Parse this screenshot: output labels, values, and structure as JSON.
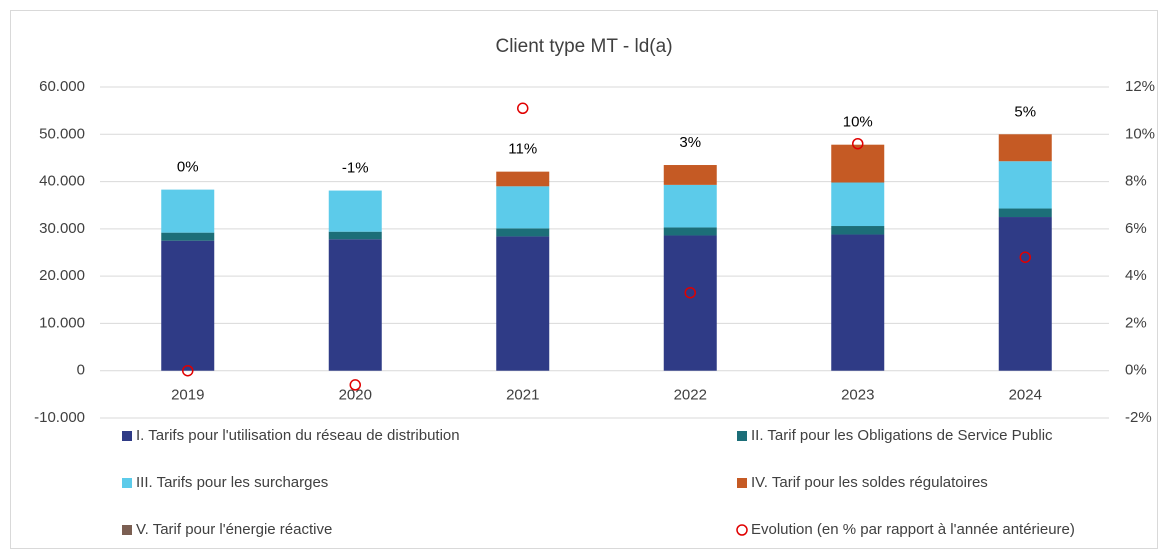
{
  "chart_data": {
    "type": "bar",
    "stacked": true,
    "title": "Client type MT - ld(a)",
    "categories": [
      "2019",
      "2020",
      "2021",
      "2022",
      "2023",
      "2024"
    ],
    "series": [
      {
        "name": "I. Tarifs pour l'utilisation du réseau de distribution",
        "color": "#2f3b86",
        "values": [
          27500,
          27800,
          28400,
          28600,
          28800,
          32500
        ]
      },
      {
        "name": "II. Tarif pour les Obligations de Service Public",
        "color": "#1c6e78",
        "values": [
          1700,
          1600,
          1700,
          1700,
          1800,
          1800
        ]
      },
      {
        "name": "III. Tarifs pour les surcharges",
        "color": "#5ccbea",
        "values": [
          9100,
          8700,
          8900,
          9000,
          9200,
          10000
        ]
      },
      {
        "name": "IV. Tarif pour les soldes régulatoires",
        "color": "#c55a24",
        "values": [
          0,
          0,
          3100,
          4200,
          8000,
          5700
        ]
      },
      {
        "name": "V. Tarif pour l'énergie réactive",
        "color": "#7b5f52",
        "values": [
          0,
          0,
          0,
          0,
          0,
          0
        ]
      },
      {
        "name": "Evolution (en % par rapport à l'année antérieure)",
        "color": "#e00000",
        "type": "scatter",
        "marker": "circle",
        "axis": "y2",
        "values": [
          0,
          -0.6,
          11.1,
          3.3,
          9.6,
          4.8
        ],
        "value_labels": [
          "0%",
          "-1%",
          "11%",
          "3%",
          "10%",
          "5%"
        ]
      }
    ],
    "ylim": [
      -10000,
      60000
    ],
    "yticks": [
      {
        "value": -10000,
        "label": "-10.000"
      },
      0,
      {
        "value": 10000,
        "label": "10.000"
      },
      {
        "value": 20000,
        "label": "20.000"
      },
      {
        "value": 30000,
        "label": "30.000"
      },
      {
        "value": 40000,
        "label": "40.000"
      },
      {
        "value": 50000,
        "label": "50.000"
      },
      {
        "value": 60000,
        "label": "60.000"
      }
    ],
    "y2lim": [
      -2,
      12
    ],
    "y2ticks": [
      {
        "value": -2,
        "label": "-2%"
      },
      {
        "value": 0,
        "label": "0%"
      },
      {
        "value": 2,
        "label": "2%"
      },
      {
        "value": 4,
        "label": "4%"
      },
      {
        "value": 6,
        "label": "6%"
      },
      {
        "value": 8,
        "label": "8%"
      },
      {
        "value": 10,
        "label": "10%"
      },
      {
        "value": 12,
        "label": "12%"
      }
    ],
    "grid": true,
    "legend": "bottom"
  }
}
